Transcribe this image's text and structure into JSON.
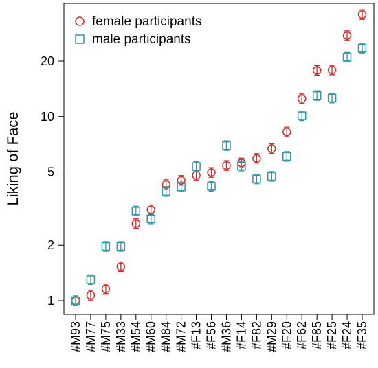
{
  "chart_data": {
    "type": "scatter",
    "ylabel": "Liking of Face",
    "xlabel": "",
    "y_scale": "log",
    "ylim": [
      0.92,
      42
    ],
    "yticks": [
      1,
      2,
      5,
      10,
      20
    ],
    "grid": false,
    "legend_position": "top-left",
    "categories": [
      "#M93",
      "#M77",
      "#M75",
      "#M33",
      "#M54",
      "#M60",
      "#M84",
      "#M72",
      "#F13",
      "#F56",
      "#M36",
      "#F14",
      "#F82",
      "#M29",
      "#F20",
      "#F62",
      "#F85",
      "#F25",
      "#F24",
      "#F35"
    ],
    "series": [
      {
        "name": "female participants",
        "marker": "circle",
        "color": "#d62728",
        "values": [
          1.0,
          1.07,
          1.16,
          1.53,
          2.62,
          3.12,
          4.27,
          4.5,
          4.8,
          4.97,
          5.42,
          5.6,
          5.92,
          6.7,
          8.25,
          12.5,
          17.8,
          17.9,
          27.5,
          35.8
        ]
      },
      {
        "name": "male participants",
        "marker": "square",
        "color": "#2e97a8",
        "values": [
          1.0,
          1.3,
          1.97,
          1.97,
          3.07,
          2.78,
          3.92,
          4.15,
          5.35,
          4.18,
          6.95,
          5.38,
          4.58,
          4.73,
          6.07,
          10.1,
          13.0,
          12.6,
          21.0,
          23.5
        ]
      }
    ]
  }
}
